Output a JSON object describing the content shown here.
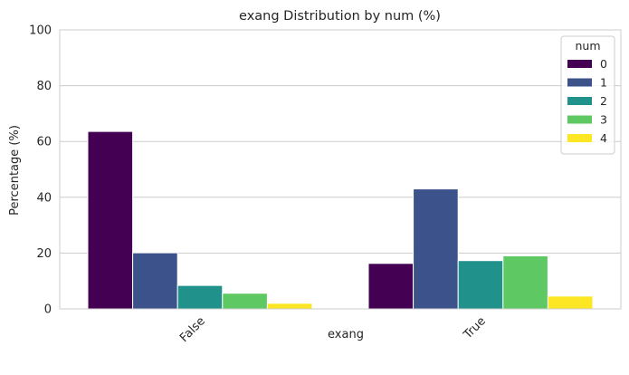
{
  "chart_data": {
    "type": "bar",
    "title": "exang Distribution by num (%)",
    "xlabel": "exang",
    "ylabel": "Percentage (%)",
    "ylim": [
      0,
      100
    ],
    "yticks": [
      0,
      20,
      40,
      60,
      80,
      100
    ],
    "categories": [
      "False",
      "True"
    ],
    "grid": true,
    "legend": {
      "title": "num",
      "placement": "top-right"
    },
    "series": [
      {
        "name": "0",
        "color": "#440154",
        "values": [
          63.6,
          16.3
        ]
      },
      {
        "name": "1",
        "color": "#3b528b",
        "values": [
          20.1,
          43.0
        ]
      },
      {
        "name": "2",
        "color": "#21918c",
        "values": [
          8.4,
          17.3
        ]
      },
      {
        "name": "3",
        "color": "#5ec962",
        "values": [
          5.6,
          19.0
        ]
      },
      {
        "name": "4",
        "color": "#fde725",
        "values": [
          2.0,
          4.6
        ]
      }
    ]
  }
}
